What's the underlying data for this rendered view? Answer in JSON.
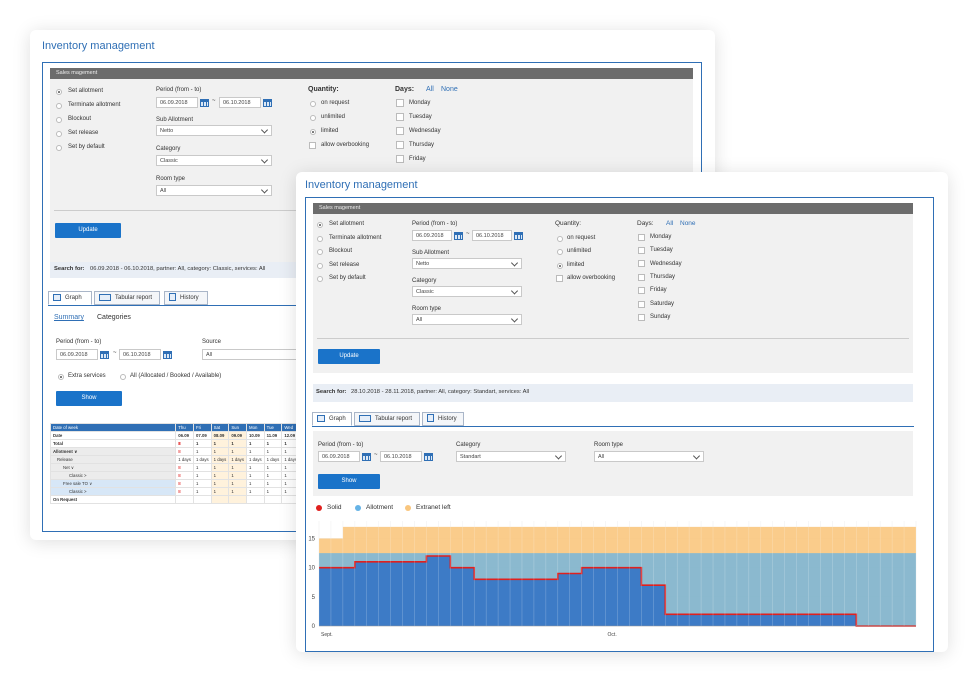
{
  "colors": {
    "accent": "#2f6fb5",
    "button": "#1a73c9",
    "solid": "#e0201e",
    "allotment": "#66b3e6",
    "extranet": "#f9c67e"
  },
  "back": {
    "title": "Inventory management",
    "panel_title": "Sales magement",
    "actions": [
      {
        "label": "Set allotment",
        "selected": true
      },
      {
        "label": "Terminate allotment",
        "selected": false
      },
      {
        "label": "Blockout",
        "selected": false
      },
      {
        "label": "Set release",
        "selected": false
      },
      {
        "label": "Set by default",
        "selected": false
      }
    ],
    "period_label": "Period (from - to)",
    "period_from": "06.09.2018",
    "period_sep": "~",
    "period_to": "06.10.2018",
    "sub_allotment_label": "Sub Allotment",
    "sub_allotment_value": "Netto",
    "category_label": "Category",
    "category_value": "Classic",
    "room_type_label": "Room type",
    "room_type_value": "All",
    "quantity_label": "Quantity:",
    "quantity_options": [
      {
        "label": "on request",
        "selected": false
      },
      {
        "label": "unlimited",
        "selected": false
      },
      {
        "label": "limited",
        "selected": true
      }
    ],
    "overbooking_label": "allow overbooking",
    "days_label": "Days:",
    "days_all": "All",
    "days_none": "None",
    "days": [
      "Monday",
      "Tuesday",
      "Wednesday",
      "Thursday",
      "Friday"
    ],
    "update_label": "Update",
    "search_for_label": "Search for:",
    "search_for_text": "06.09.2018 - 06.10.2018,  partner: All,  category: Classic,  services: All",
    "tabs": [
      "Graph",
      "Tabular report",
      "History"
    ],
    "subtabs": [
      "Summary",
      "Categories"
    ],
    "report_period_label": "Period (from - to)",
    "report_from": "06.09.2018",
    "report_sep": "~",
    "report_to": "06.10.2018",
    "source_label": "Source",
    "source_value": "All",
    "extra_services_label": "Extra services",
    "all_allocated_label": "All (Allocated / Booked / Available)",
    "show_label": "Show",
    "table": {
      "header": [
        "Date of week",
        "Thu",
        "Fri",
        "Sat",
        "Sun",
        "Mon",
        "Tue",
        "Wed"
      ],
      "rows": [
        {
          "label": "Date",
          "cells": [
            "06.09",
            "07.09",
            "08.09",
            "09.09",
            "10.09",
            "11.09",
            "12.09"
          ],
          "style": "bold"
        },
        {
          "label": "Total",
          "cells": [
            "8",
            "1",
            "1",
            "1",
            "1",
            "1",
            "1"
          ],
          "style": "bold"
        },
        {
          "label": "Allotment  ∨",
          "cells": [
            "8",
            "1",
            "1",
            "1",
            "1",
            "1",
            "1"
          ],
          "style": "grey"
        },
        {
          "label": "Release",
          "cells": [
            "1 days",
            "1 days",
            "1 days",
            "1 days",
            "1 days",
            "1 days",
            "1 days"
          ],
          "style": "plain"
        },
        {
          "label": "Net  ∨",
          "cells": [
            "8",
            "1",
            "1",
            "1",
            "1",
            "1",
            "1"
          ],
          "style": "grey"
        },
        {
          "label": "Classic  >",
          "cells": [
            "8",
            "1",
            "1",
            "1",
            "1",
            "1",
            "1"
          ],
          "style": "grey"
        },
        {
          "label": "Free sale TO  ∨",
          "cells": [
            "8",
            "1",
            "1",
            "1",
            "1",
            "1",
            "1"
          ],
          "style": "blue"
        },
        {
          "label": "Classic  >",
          "cells": [
            "8",
            "1",
            "1",
            "1",
            "1",
            "1",
            "1"
          ],
          "style": "blue"
        },
        {
          "label": "On Request",
          "cells": [
            "",
            "",
            "",
            "",
            "",
            "",
            ""
          ],
          "style": "bold"
        }
      ]
    }
  },
  "front": {
    "title": "Inventory management",
    "panel_title": "Sales magement",
    "actions": [
      {
        "label": "Set allotment",
        "selected": true
      },
      {
        "label": "Terminate allotment",
        "selected": false
      },
      {
        "label": "Blockout",
        "selected": false
      },
      {
        "label": "Set release",
        "selected": false
      },
      {
        "label": "Set by default",
        "selected": false
      }
    ],
    "period_label": "Period (from - to)",
    "period_from": "06.09.2018",
    "period_sep": "~",
    "period_to": "06.10.2018",
    "sub_allotment_label": "Sub Allotment",
    "sub_allotment_value": "Netto",
    "category_label": "Category",
    "category_value": "Classic",
    "room_type_label": "Room type",
    "room_type_value": "All",
    "quantity_label": "Quantity:",
    "quantity_options": [
      {
        "label": "on request",
        "selected": false
      },
      {
        "label": "unlimited",
        "selected": false
      },
      {
        "label": "limited",
        "selected": true
      }
    ],
    "overbooking_label": "allow overbooking",
    "days_label": "Days:",
    "days_all": "All",
    "days_none": "None",
    "days": [
      "Monday",
      "Tuesday",
      "Wednesday",
      "Thursday",
      "Friday",
      "Saturday",
      "Sunday"
    ],
    "update_label": "Update",
    "search_for_label": "Search for:",
    "search_for_text": "28.10.2018 - 28.11.2018,  partner: All,  category: Standart,  services: All",
    "tabs": [
      "Graph",
      "Tabular report",
      "History"
    ],
    "graph_period_label": "Period (from - to)",
    "graph_from": "06.09.2018",
    "graph_sep": "~",
    "graph_to": "06.10.2018",
    "graph_category_label": "Category",
    "graph_category_value": "Standart",
    "graph_room_type_label": "Room type",
    "graph_room_type_value": "All",
    "show_label": "Show"
  },
  "chart_data": {
    "type": "area",
    "legend": [
      "Solid",
      "Allotment",
      "Extranet left"
    ],
    "legend_position": "top-left",
    "y_ticks": [
      "0",
      "5",
      "10",
      "15"
    ],
    "ylim": [
      0,
      18
    ],
    "x_tick_labels": [
      {
        "label": "Sept.",
        "index": 0
      },
      {
        "label": "Oct.",
        "index": 24
      }
    ],
    "days": 50,
    "grid": true,
    "series": [
      {
        "name": "Extranet left",
        "type": "step-area",
        "values": [
          15,
          15,
          17,
          17,
          17,
          17,
          17,
          17,
          17,
          17,
          17,
          17,
          17,
          17,
          17,
          17,
          17,
          17,
          17,
          17,
          17,
          17,
          17,
          17,
          17,
          17,
          17,
          17,
          17,
          17,
          17,
          17,
          17,
          17,
          17,
          17,
          17,
          17,
          17,
          17,
          17,
          17,
          17,
          17,
          17,
          17,
          17,
          17,
          17,
          17
        ]
      },
      {
        "name": "Allotment",
        "type": "step-area",
        "values": [
          12.5,
          12.5,
          12.5,
          12.5,
          12.5,
          12.5,
          12.5,
          12.5,
          12.5,
          12.5,
          12.5,
          12.5,
          12.5,
          12.5,
          12.5,
          12.5,
          12.5,
          12.5,
          12.5,
          12.5,
          12.5,
          12.5,
          12.5,
          12.5,
          12.5,
          12.5,
          12.5,
          12.5,
          12.5,
          12.5,
          12.5,
          12.5,
          12.5,
          12.5,
          12.5,
          12.5,
          12.5,
          12.5,
          12.5,
          12.5,
          12.5,
          12.5,
          12.5,
          12.5,
          12.5,
          12.5,
          12.5,
          12.5,
          12.5,
          12.5
        ]
      },
      {
        "name": "Solid",
        "type": "step-line",
        "values": [
          10,
          10,
          10,
          11,
          11,
          11,
          11,
          11,
          11,
          12,
          12,
          10,
          10,
          8,
          8,
          8,
          8,
          8,
          8,
          8,
          9,
          9,
          10,
          10,
          10,
          10,
          10,
          7,
          7,
          2,
          2,
          2,
          2,
          2,
          2,
          2,
          2,
          2,
          2,
          2,
          2,
          2,
          2,
          2,
          2,
          0,
          0,
          0,
          0,
          0
        ]
      }
    ]
  }
}
